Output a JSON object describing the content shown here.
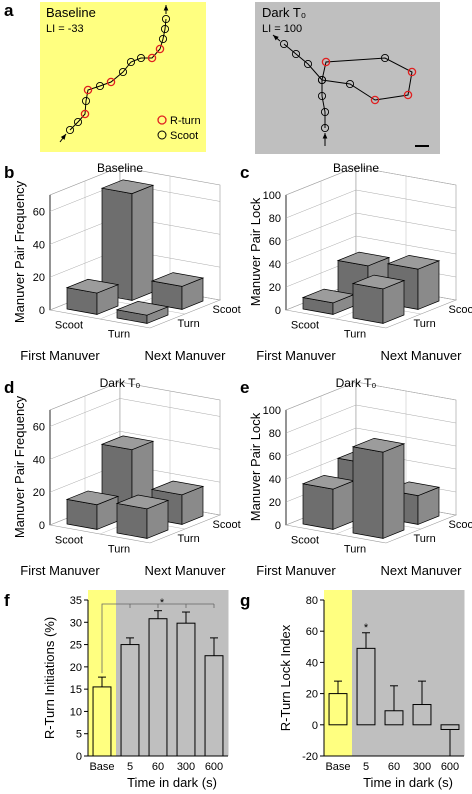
{
  "diagram": {
    "panel_label": "a",
    "left": {
      "title": "Baseline",
      "index": "LI = -33",
      "legend": [
        "R-turn",
        "Scoot"
      ]
    },
    "right": {
      "title": "Dark T₀",
      "index": "LI = 100"
    }
  },
  "chart_data": [
    {
      "type": "bar3d",
      "panel_label": "b",
      "title": "Baseline",
      "zlabel": "Manuver Pair Frequency",
      "xlabel": "First Manuver",
      "ylabel": "Next Manuver",
      "categories": [
        "Scoot",
        "Turn"
      ],
      "series": [
        {
          "name": "Scoot",
          "color": "#6e6e6e",
          "values": [
            65,
            14
          ]
        },
        {
          "name": "Turn",
          "color": "#6e6e6e",
          "values": [
            13,
            5
          ]
        }
      ],
      "zlim": [
        0,
        70
      ],
      "zticks": [
        0,
        20,
        40,
        60
      ],
      "grid": true
    },
    {
      "type": "bar3d",
      "panel_label": "c",
      "title": "Baseline",
      "zlabel": "Manuver Pair Lock",
      "xlabel": "First Manuver",
      "ylabel": "Next Manuver",
      "categories": [
        "Scoot",
        "Turn"
      ],
      "series": [
        {
          "name": "Scoot",
          "color": "#6e6e6e",
          "values": [
            30,
            35
          ]
        },
        {
          "name": "Turn",
          "color": "#6e6e6e",
          "values": [
            10,
            30
          ]
        }
      ],
      "zlim": [
        0,
        100
      ],
      "zticks": [
        0,
        20,
        40,
        60,
        80,
        100
      ],
      "grid": true
    },
    {
      "type": "bar3d",
      "panel_label": "d",
      "title": "Dark T₀",
      "zlabel": "Manuver Pair Frequency",
      "xlabel": "First Manuver",
      "ylabel": "Next Manuver",
      "categories": [
        "Scoot",
        "Turn"
      ],
      "series": [
        {
          "name": "Scoot",
          "color": "#6e6e6e",
          "values": [
            40,
            18
          ]
        },
        {
          "name": "Turn",
          "color": "#6e6e6e",
          "values": [
            15,
            18
          ]
        }
      ],
      "zlim": [
        0,
        70
      ],
      "zticks": [
        0,
        20,
        40,
        60
      ],
      "grid": true
    },
    {
      "type": "bar3d",
      "panel_label": "e",
      "title": "Dark T₀",
      "zlabel": "Manuver Pair Lock",
      "xlabel": "First Manuver",
      "ylabel": "Next Manuver",
      "categories": [
        "Scoot",
        "Turn"
      ],
      "series": [
        {
          "name": "Scoot",
          "color": "#6e6e6e",
          "values": [
            45,
            25
          ]
        },
        {
          "name": "Turn",
          "color": "#6e6e6e",
          "values": [
            35,
            75
          ]
        }
      ],
      "zlim": [
        0,
        100
      ],
      "zticks": [
        0,
        20,
        40,
        60,
        80,
        100
      ],
      "grid": true
    },
    {
      "type": "errbar",
      "panel_label": "f",
      "ylabel": "R-Turn Initiations (%)",
      "xlabel": "Time in dark (s)",
      "categories": [
        "Base",
        "5",
        "60",
        "300",
        "600"
      ],
      "values": [
        15.5,
        25,
        30.8,
        29.8,
        22.5
      ],
      "errors": [
        2.2,
        1.5,
        1.8,
        2.5,
        4
      ],
      "backgrounds": [
        "#ffff80",
        "#bfbfbf",
        "#bfbfbf",
        "#bfbfbf",
        "#bfbfbf"
      ],
      "annotation": "*",
      "ylim": [
        0,
        35
      ],
      "yticks": [
        0,
        5,
        10,
        15,
        20,
        25,
        30,
        35
      ]
    },
    {
      "type": "errbar",
      "panel_label": "g",
      "ylabel": "R-Turn Lock Index",
      "xlabel": "Time in dark (s)",
      "categories": [
        "Base",
        "5",
        "60",
        "300",
        "600"
      ],
      "values": [
        20,
        49,
        9,
        13,
        -3
      ],
      "errors": [
        8,
        10,
        16,
        15,
        17
      ],
      "backgrounds": [
        "#ffff80",
        "#bfbfbf",
        "#bfbfbf",
        "#bfbfbf",
        "#bfbfbf"
      ],
      "annotation": "*",
      "ylim": [
        -20,
        80
      ],
      "yticks": [
        -20,
        0,
        20,
        40,
        60,
        80
      ]
    }
  ]
}
